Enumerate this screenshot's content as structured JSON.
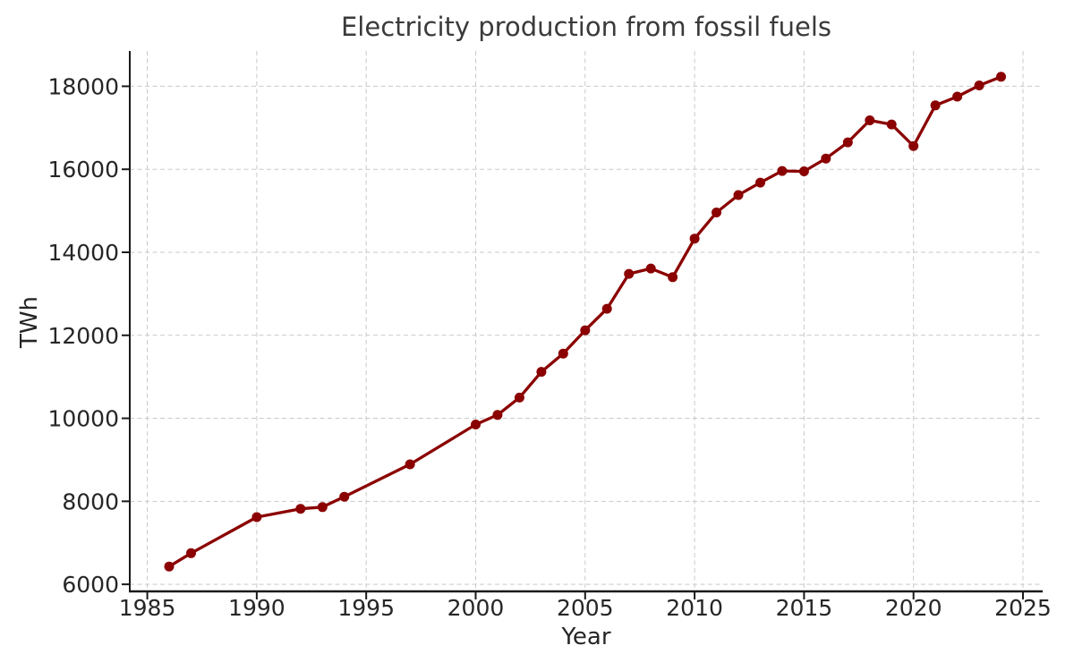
{
  "page": {
    "background": "#ffffff"
  },
  "chart_data": {
    "type": "line",
    "title": "Electricity production from fossil fuels",
    "xlabel": "Year",
    "ylabel": "TWh",
    "grid": true,
    "grid_color": "#c9c9c9",
    "spine_color": "#1a1a1a",
    "text_color": "#262626",
    "title_color": "#3a3a3a",
    "xlim": [
      1984.2,
      2025.9
    ],
    "ylim": [
      5830,
      18850
    ],
    "xticks": [
      1985,
      1990,
      1995,
      2000,
      2005,
      2010,
      2015,
      2020,
      2025
    ],
    "yticks": [
      6000,
      8000,
      10000,
      12000,
      14000,
      16000,
      18000
    ],
    "legend": "none",
    "series": [
      {
        "name": "Electricity production from fossil fuels",
        "color": "#8B0000",
        "marker": "circle",
        "marker_radius": 5.5,
        "line_width": 3.3,
        "x": [
          1986,
          1987,
          1990,
          1992,
          1993,
          1994,
          1997,
          2000,
          2001,
          2002,
          2003,
          2004,
          2005,
          2006,
          2007,
          2008,
          2009,
          2010,
          2011,
          2012,
          2013,
          2014,
          2015,
          2016,
          2017,
          2018,
          2019,
          2020,
          2021,
          2022,
          2023,
          2024
        ],
        "y": [
          6430,
          6750,
          7620,
          7820,
          7860,
          8110,
          8890,
          9850,
          10080,
          10500,
          11120,
          11560,
          12120,
          12640,
          13480,
          13610,
          13400,
          14330,
          14960,
          15380,
          15680,
          15960,
          15950,
          16260,
          16650,
          17180,
          17080,
          16560,
          17540,
          17750,
          18020,
          18230
        ]
      }
    ]
  }
}
